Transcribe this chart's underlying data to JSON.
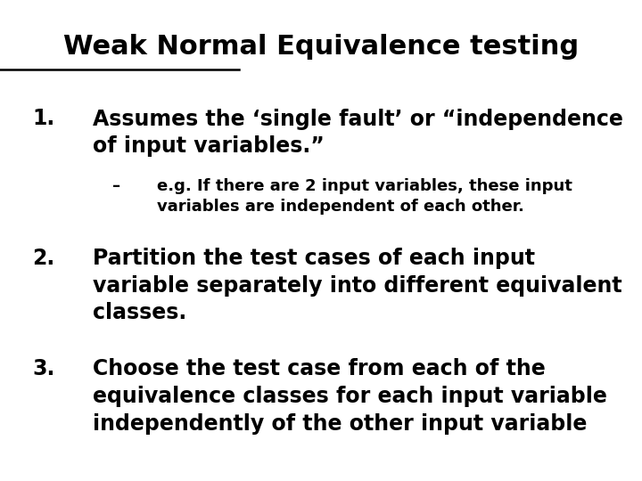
{
  "title_part1": "Weak Normal",
  "title_part2": " Equivalence testing",
  "bg_color": "#ffffff",
  "text_color": "#000000",
  "item1_line1": "Assumes the ‘single fault’ or “independence",
  "item1_line2": "of input variables.”",
  "item1_sub_line1": "e.g. If there are 2 input variables, these input",
  "item1_sub_line2": "variables are independent of each other.",
  "item2_line1": "Partition the test cases of each input",
  "item2_line2": "variable separately into different equivalent",
  "item2_line3": "classes.",
  "item3_line1": "Choose the test case from each of the",
  "item3_line2": "equivalence classes for each input variable",
  "item3_line3": "independently of the other input variable",
  "fontsize_title": 22,
  "fontsize_main": 17,
  "fontsize_sub": 13,
  "font_family": "DejaVu Sans"
}
